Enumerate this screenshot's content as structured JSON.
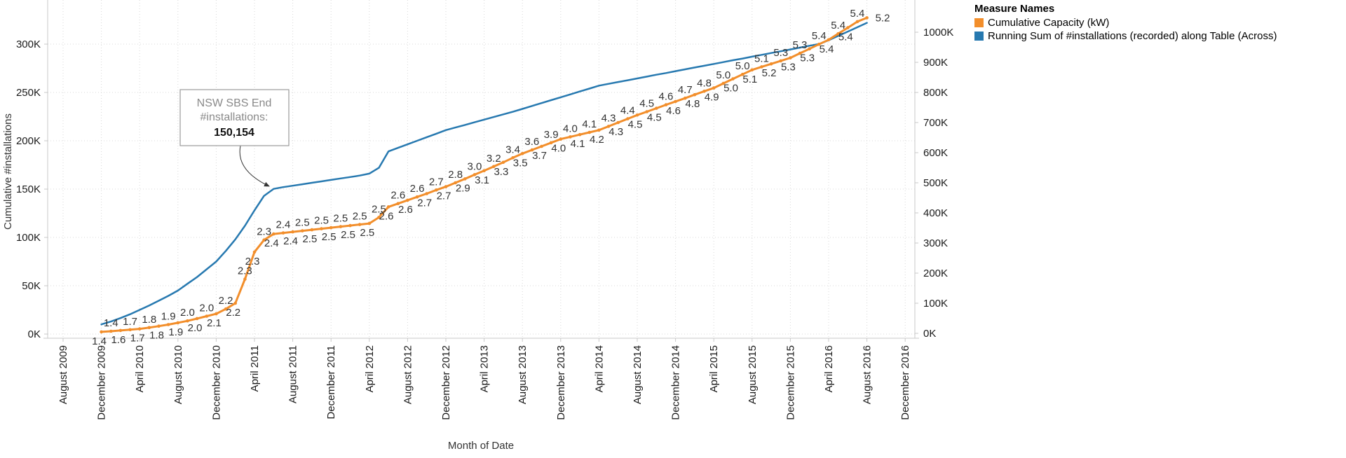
{
  "legend": {
    "title": "Measure Names",
    "items": [
      {
        "label": "Cumulative Capacity (kW)",
        "color": "#F28E2B"
      },
      {
        "label": "Running Sum of #installations (recorded) along Table (Across)",
        "color": "#2779B0"
      }
    ]
  },
  "annotation": {
    "line1": "NSW SBS End",
    "line2": "#installations:",
    "value": "150,154"
  },
  "chart_data": {
    "type": "line",
    "xlabel": "Month of Date",
    "y_left_label": "Cumulative #installations",
    "y_right_label": "Cumulative Capacity (kW)",
    "grid": "dotted",
    "legend_position": "top-right",
    "start_month": "2009-12",
    "end_month": "2016-08",
    "x_tick_labels": [
      "August 2009",
      "December 2009",
      "April 2010",
      "August 2010",
      "December 2010",
      "April 2011",
      "August 2011",
      "December 2011",
      "April 2012",
      "August 2012",
      "December 2012",
      "April 2013",
      "August 2013",
      "December 2013",
      "April 2014",
      "August 2014",
      "December 2014",
      "April 2015",
      "August 2015",
      "December 2015",
      "April 2016",
      "August 2016",
      "December 2016"
    ],
    "y_left_ticks_thousands": [
      0,
      50,
      100,
      150,
      200,
      250,
      300
    ],
    "y_left_tick_labels": [
      "0K",
      "50K",
      "100K",
      "150K",
      "200K",
      "250K",
      "300K"
    ],
    "y_left_range_thousands": [
      0,
      346
    ],
    "y_right_ticks_thousands": [
      0,
      100,
      200,
      300,
      400,
      500,
      600,
      700,
      800,
      900,
      1000
    ],
    "y_right_tick_labels": [
      "0K",
      "100K",
      "200K",
      "300K",
      "400K",
      "500K",
      "600K",
      "700K",
      "800K",
      "900K",
      "1000K"
    ],
    "y_right_range_thousands": [
      0,
      1107
    ],
    "series": [
      {
        "name": "Running Sum of #installations (recorded) along Table (Across)",
        "axis": "left",
        "color": "#2779B0",
        "markers": false,
        "values_thousands": [
          10,
          13,
          16.5,
          20.5,
          25,
          29.5,
          34.5,
          39.5,
          45,
          52,
          59,
          67,
          75,
          86,
          98,
          112,
          128,
          143,
          150.2,
          152,
          153.5,
          155,
          156.5,
          158,
          159.5,
          161,
          162.5,
          164,
          166,
          172,
          189,
          192.7,
          196.3,
          200,
          203.7,
          207.3,
          211,
          213.7,
          216.4,
          219.1,
          221.9,
          224.6,
          227.3,
          230,
          233,
          236,
          239,
          242,
          245,
          248,
          251,
          254,
          257,
          258.9,
          260.8,
          262.6,
          264.5,
          266.4,
          268.3,
          270.1,
          272,
          273.9,
          275.8,
          277.6,
          279.5,
          281.4,
          283.3,
          285.1,
          287,
          288.9,
          290.8,
          292.6,
          294.5,
          296.4,
          298.3,
          300.1,
          304,
          308.5,
          313,
          317.5,
          322
        ]
      },
      {
        "name": "Cumulative Capacity (kW)",
        "axis": "right",
        "color": "#F28E2B",
        "markers": true,
        "values_thousands": [
          5,
          7,
          9.5,
          12,
          15,
          19,
          24,
          29,
          35,
          41.5,
          49,
          57,
          65,
          81,
          100,
          180,
          270,
          310,
          330,
          333.5,
          337,
          340.5,
          344,
          347.5,
          351,
          354.5,
          358,
          361.5,
          365,
          385,
          420,
          431,
          442,
          453,
          464,
          476,
          487,
          500,
          513,
          527,
          540,
          554,
          568,
          583,
          597,
          609,
          621,
          633,
          645,
          652.5,
          660,
          667.5,
          675,
          687.5,
          700,
          712.5,
          725,
          736,
          747.5,
          759,
          770,
          781,
          792.5,
          804,
          815,
          830,
          845,
          860,
          875,
          885,
          895,
          905,
          915,
          930,
          945,
          960,
          975,
          995,
          1015,
          1035,
          1048
        ]
      }
    ],
    "point_labels": [
      "1.4",
      "1.4",
      "1.6",
      "1.7",
      "1.7",
      "1.8",
      "1.8",
      "1.9",
      "1.9",
      "2.0",
      "2.0",
      "2.0",
      "2.1",
      "2.2",
      "2.2",
      "2.3",
      "2.3",
      "2.3",
      "2.4",
      "2.4",
      "2.4",
      "2.5",
      "2.5",
      "2.5",
      "2.5",
      "2.5",
      "2.5",
      "2.5",
      "2.5",
      "2.5",
      "2.6",
      "2.6",
      "2.6",
      "2.6",
      "2.7",
      "2.7",
      "2.7",
      "2.8",
      "2.9",
      "3.0",
      "3.1",
      "3.2",
      "3.3",
      "3.4",
      "3.5",
      "3.6",
      "3.7",
      "3.9",
      "4.0",
      "4.0",
      "4.1",
      "4.1",
      "4.2",
      "4.3",
      "4.3",
      "4.4",
      "4.5",
      "4.5",
      "4.5",
      "4.6",
      "4.6",
      "4.7",
      "4.8",
      "4.8",
      "4.9",
      "5.0",
      "5.0",
      "5.0",
      "5.1",
      "5.1",
      "5.2",
      "5.3",
      "5.3",
      "5.3",
      "5.3",
      "5.4",
      "5.4",
      "5.4",
      "5.4",
      "5.4",
      "5.2"
    ],
    "annotation_target_point_index": 18
  }
}
